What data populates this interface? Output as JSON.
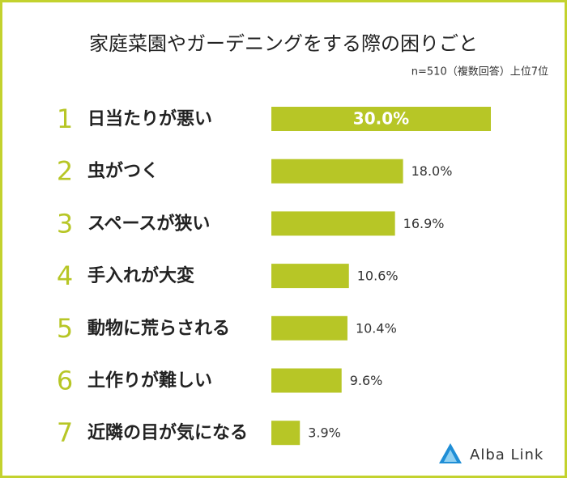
{
  "chart_data": {
    "type": "bar",
    "orientation": "horizontal",
    "title": "家庭菜園やガーデニングをする際の困りごと",
    "subtitle": "n=510（複数回答）上位7位",
    "ranks": [
      "1",
      "2",
      "3",
      "4",
      "5",
      "6",
      "7"
    ],
    "categories": [
      "日当たりが悪い",
      "虫がつく",
      "スペースが狭い",
      "手入れが大変",
      "動物に荒らされる",
      "土作りが難しい",
      "近隣の目が気になる"
    ],
    "values": [
      30.0,
      18.0,
      16.9,
      10.6,
      10.4,
      9.6,
      3.9
    ],
    "value_labels": [
      "30.0%",
      "18.0%",
      "16.9%",
      "10.6%",
      "10.4%",
      "9.6%",
      "3.9%"
    ],
    "color": "#b7c626",
    "logo": "Alba Link"
  }
}
